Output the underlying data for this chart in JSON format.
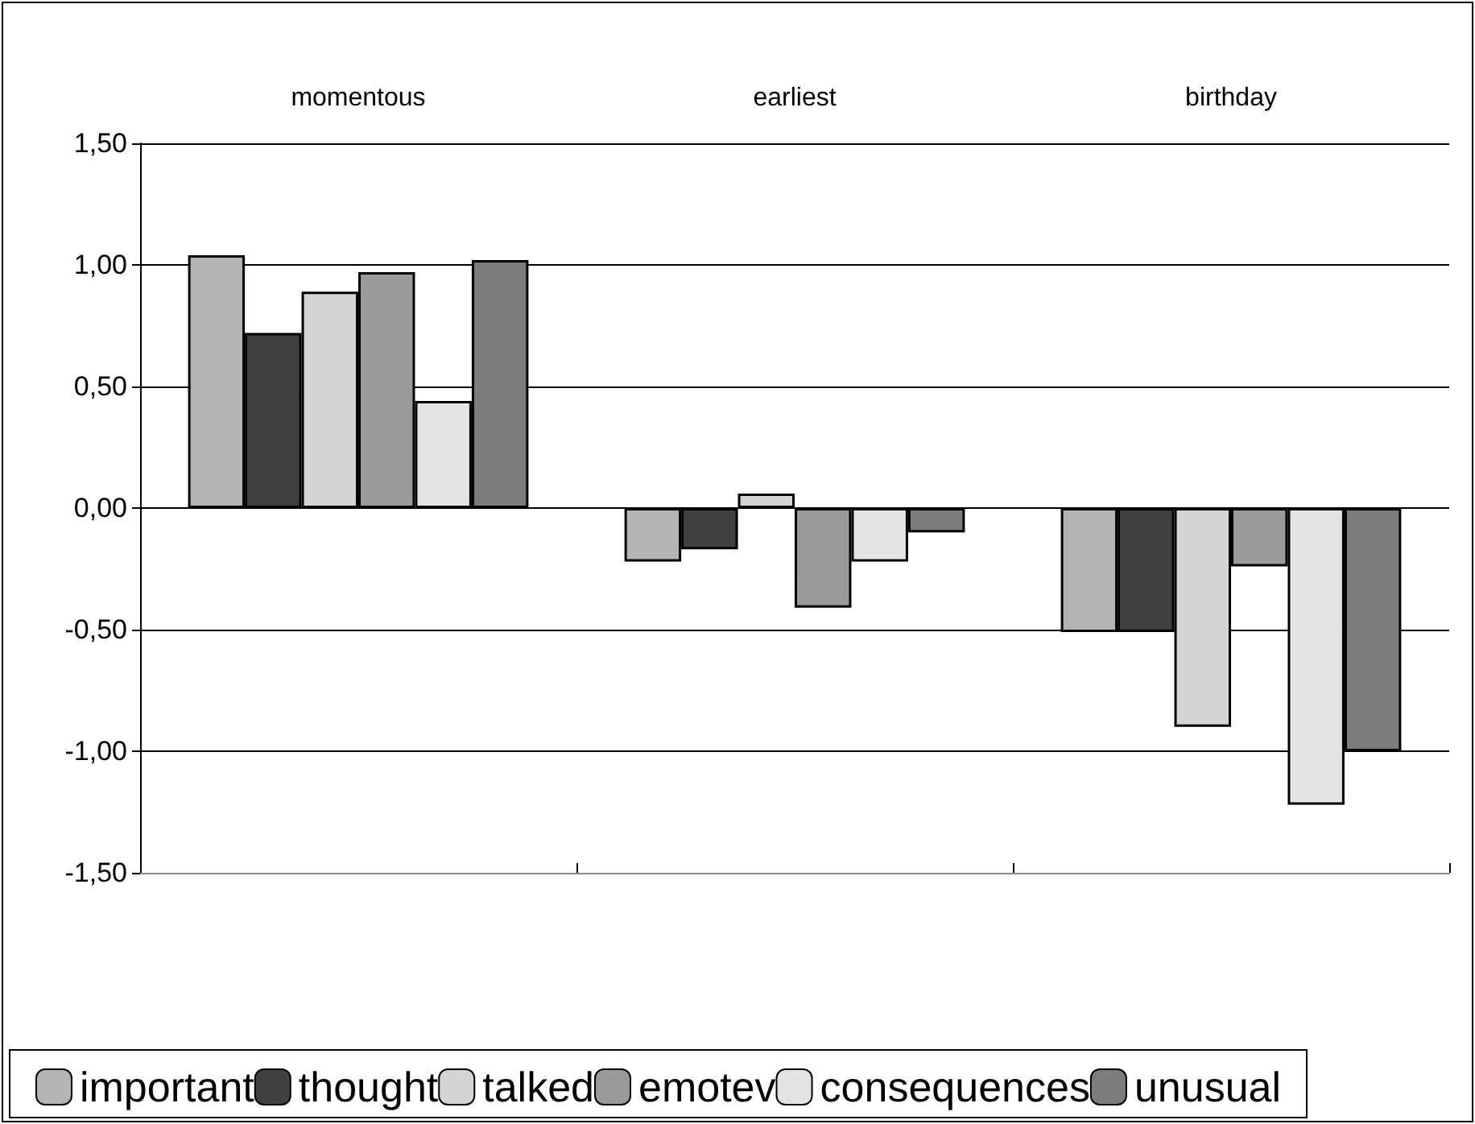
{
  "chart_data": {
    "type": "bar",
    "categories": [
      "momentous",
      "earliest",
      "birthday"
    ],
    "series": [
      {
        "name": "important",
        "color": "#b4b4b4",
        "values": [
          1.04,
          -0.22,
          -0.51
        ]
      },
      {
        "name": "thought",
        "color": "#404040",
        "values": [
          0.72,
          -0.17,
          -0.51
        ]
      },
      {
        "name": "talked",
        "color": "#d4d4d4",
        "values": [
          0.89,
          0.06,
          -0.9
        ]
      },
      {
        "name": "emotev",
        "color": "#9a9a9a",
        "values": [
          0.97,
          -0.41,
          -0.24
        ]
      },
      {
        "name": "consequences",
        "color": "#e4e4e4",
        "values": [
          0.44,
          -0.22,
          -1.22
        ]
      },
      {
        "name": "unusual",
        "color": "#7c7c7c",
        "values": [
          1.02,
          -0.1,
          -1.0
        ]
      }
    ],
    "ylim": [
      -1.5,
      1.5
    ],
    "yticks": [
      {
        "value": -1.5,
        "label": "-1,50"
      },
      {
        "value": -1.0,
        "label": "-1,00"
      },
      {
        "value": -0.5,
        "label": "-0,50"
      },
      {
        "value": 0,
        "label": "0,00"
      },
      {
        "value": 0.5,
        "label": "0,50"
      },
      {
        "value": 1.0,
        "label": "1,00"
      },
      {
        "value": 1.5,
        "label": "1,50"
      }
    ],
    "grid": "y",
    "legend": "bottom"
  }
}
